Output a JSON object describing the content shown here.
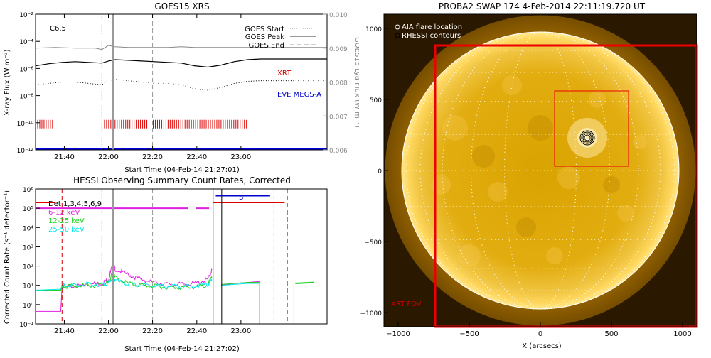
{
  "chart_data": [
    {
      "id": "goes",
      "type": "line",
      "title": "GOES15 XRS",
      "xlabel": "Start Time (04-Feb-14 21:27:01)",
      "ylabel": "X-ray Flux (W m⁻²)",
      "y2label": "GOES15 Lya Flux (W m⁻²)",
      "xlim": [
        0,
        2.2
      ],
      "ylim_log": [
        -12,
        -2
      ],
      "y2lim": [
        0.006,
        0.01
      ],
      "x_ticks": [
        {
          "v": 0.217,
          "label": "21:40"
        },
        {
          "v": 0.55,
          "label": "22:00"
        },
        {
          "v": 0.883,
          "label": "22:20"
        },
        {
          "v": 1.217,
          "label": "22:40"
        },
        {
          "v": 1.55,
          "label": "23:00"
        }
      ],
      "y_ticks": [
        {
          "v": -2,
          "label": "10⁻²"
        },
        {
          "v": -4,
          "label": "10⁻⁴"
        },
        {
          "v": -6,
          "label": "10⁻⁶"
        },
        {
          "v": -8,
          "label": "10⁻⁸"
        },
        {
          "v": -10,
          "label": "10⁻¹⁰"
        },
        {
          "v": -12,
          "label": "10⁻¹²"
        }
      ],
      "y2_ticks": [
        {
          "v": 0.01,
          "label": "0.010"
        },
        {
          "v": 0.009,
          "label": "0.009"
        },
        {
          "v": 0.008,
          "label": "0.008"
        },
        {
          "v": 0.007,
          "label": "0.007"
        },
        {
          "v": 0.006,
          "label": "0.006"
        }
      ],
      "class_label": "C6.5",
      "legend": [
        {
          "label": "GOES Start",
          "style": "dotted"
        },
        {
          "label": "GOES Peak",
          "style": "solid"
        },
        {
          "label": "GOES End",
          "style": "dashed"
        }
      ],
      "labels": {
        "xrt": "XRT",
        "eve": "EVE MEGS-A"
      },
      "markers": {
        "start": 0.5,
        "peak": 0.585,
        "end": 0.883
      },
      "series": [
        {
          "role": "gray",
          "color": "#888888",
          "x": [
            0,
            0.15,
            0.3,
            0.45,
            0.5,
            0.55,
            0.6,
            0.7,
            0.8,
            0.9,
            1.0,
            1.1,
            1.2,
            1.3,
            1.4,
            1.5,
            1.6,
            1.7,
            1.8,
            1.9,
            2.0,
            2.1,
            2.2
          ],
          "values": [
            -4.5,
            -4.45,
            -4.5,
            -4.5,
            -4.6,
            -4.3,
            -4.4,
            -4.45,
            -4.45,
            -4.45,
            -4.45,
            -4.4,
            -4.45,
            -4.45,
            -4.45,
            -4.45,
            -4.45,
            -4.45,
            -4.45,
            -4.45,
            -4.45,
            -4.45,
            -4.45
          ]
        },
        {
          "role": "black",
          "color": "#000000",
          "x": [
            0,
            0.1,
            0.2,
            0.3,
            0.4,
            0.5,
            0.55,
            0.6,
            0.7,
            0.8,
            0.9,
            1.0,
            1.1,
            1.2,
            1.3,
            1.4,
            1.5,
            1.6,
            1.7,
            1.8,
            1.9,
            2.0,
            2.1,
            2.2
          ],
          "values": [
            -5.8,
            -5.65,
            -5.55,
            -5.5,
            -5.55,
            -5.6,
            -5.45,
            -5.35,
            -5.4,
            -5.45,
            -5.5,
            -5.55,
            -5.6,
            -5.8,
            -5.9,
            -5.75,
            -5.5,
            -5.35,
            -5.3,
            -5.3,
            -5.3,
            -5.3,
            -5.3,
            -5.3
          ]
        },
        {
          "role": "dotted",
          "color": "#000000",
          "x": [
            0,
            0.1,
            0.2,
            0.3,
            0.4,
            0.5,
            0.55,
            0.6,
            0.7,
            0.8,
            0.9,
            1.0,
            1.1,
            1.2,
            1.3,
            1.4,
            1.5,
            1.6,
            1.7,
            1.8,
            1.9,
            2.0,
            2.1,
            2.2
          ],
          "values": [
            -7.2,
            -7.1,
            -7.0,
            -7.0,
            -7.1,
            -7.2,
            -6.9,
            -6.8,
            -6.9,
            -7.0,
            -7.1,
            -7.1,
            -7.2,
            -7.5,
            -7.6,
            -7.4,
            -7.1,
            -6.95,
            -6.9,
            -6.9,
            -6.9,
            -6.9,
            -6.9,
            -6.9
          ]
        }
      ],
      "xrt_segments": [
        [
          0,
          0.14
        ],
        [
          0.52,
          1.6
        ]
      ],
      "xrt_level": -10.1,
      "eve_level": -11.95
    },
    {
      "id": "hessi",
      "type": "line",
      "title": "HESSI Observing Summary Count Rates, Corrected",
      "xlabel": "Start Time (04-Feb-14 21:27:02)",
      "ylabel": "Corrected Count Rate (s⁻¹ detector⁻¹)",
      "xlim": [
        0,
        2.2
      ],
      "ylim_log": [
        -1,
        6
      ],
      "x_ticks": [
        {
          "v": 0.217,
          "label": "21:40"
        },
        {
          "v": 0.55,
          "label": "22:00"
        },
        {
          "v": 0.883,
          "label": "22:20"
        },
        {
          "v": 1.217,
          "label": "22:40"
        },
        {
          "v": 1.55,
          "label": "23:00"
        }
      ],
      "y_ticks": [
        {
          "v": 6,
          "label": "10⁶"
        },
        {
          "v": 5,
          "label": "10⁵"
        },
        {
          "v": 4,
          "label": "10⁴"
        },
        {
          "v": 3,
          "label": "10³"
        },
        {
          "v": 2,
          "label": "10²"
        },
        {
          "v": 1,
          "label": "10¹"
        },
        {
          "v": 0,
          "label": "10⁰"
        },
        {
          "v": -1,
          "label": "10⁻¹"
        }
      ],
      "legend": [
        {
          "label": "Det 1,3,4,5,6,9",
          "color": "#000000"
        },
        {
          "label": "6-12 keV",
          "color": "#e020e0"
        },
        {
          "label": "12-25 keV",
          "color": "#20d020"
        },
        {
          "label": "25-50 keV",
          "color": "#00e8e8"
        }
      ],
      "s_label": "S",
      "markers": {
        "start": 0.5,
        "peak": 0.585,
        "end": 0.883,
        "dash1": 0.2,
        "red_solid": 1.34,
        "black_solid": 1.405,
        "blue_dash": 1.8,
        "red_dash": 1.9
      },
      "series": [
        {
          "name": "6-12 keV",
          "color": "#e020e0",
          "x": [
            0,
            0.19,
            0.2,
            0.3,
            0.4,
            0.5,
            0.55,
            0.58,
            0.6,
            0.7,
            0.8,
            0.9,
            1.0,
            1.1,
            1.2,
            1.3,
            1.33
          ],
          "values": [
            -0.35,
            -0.35,
            0.9,
            0.95,
            1.05,
            1.1,
            1.3,
            2.0,
            1.85,
            1.55,
            1.3,
            1.15,
            1.05,
            1.05,
            1.1,
            1.3,
            1.8
          ]
        },
        {
          "name": "12-25 keV",
          "color": "#20d020",
          "x": [
            0,
            0.19,
            0.2,
            0.3,
            0.4,
            0.5,
            0.55,
            0.58,
            0.6,
            0.7,
            0.8,
            0.9,
            1.0,
            1.1,
            1.2,
            1.3,
            1.33
          ],
          "values": [
            0.75,
            0.75,
            0.95,
            0.95,
            1.0,
            1.0,
            1.15,
            1.6,
            1.4,
            1.1,
            1.0,
            0.95,
            0.9,
            0.9,
            0.9,
            1.0,
            1.5
          ]
        },
        {
          "name": "25-50 keV",
          "color": "#00e8e8",
          "x": [
            0,
            0.19,
            0.2,
            0.3,
            0.4,
            0.5,
            0.55,
            0.58,
            0.6,
            0.7,
            0.8,
            0.9,
            1.0,
            1.1,
            1.2,
            1.3,
            1.33
          ],
          "values": [
            0.75,
            0.8,
            1.0,
            1.0,
            1.05,
            1.05,
            1.1,
            1.4,
            1.25,
            1.05,
            1.0,
            1.0,
            0.95,
            0.95,
            0.95,
            1.05,
            1.3
          ]
        }
      ],
      "right_series": {
        "x": [
          1.4,
          1.5,
          1.6,
          1.69
        ],
        "magenta": [
          1.0,
          1.1,
          1.15,
          1.2
        ],
        "green": [
          1.05,
          1.1,
          1.15,
          1.15
        ],
        "cyan": [
          1.0,
          1.05,
          1.1,
          1.1
        ]
      },
      "far_right": {
        "x": [
          1.96,
          2.1
        ],
        "values": [
          1.1,
          1.15
        ]
      },
      "magenta_top": {
        "segments": [
          [
            0,
            1.15
          ],
          [
            1.21,
            1.31
          ]
        ],
        "level": 5.0
      },
      "red_top": {
        "segments": [
          [
            0,
            0.15
          ],
          [
            1.34,
            1.88
          ]
        ],
        "level": 5.3
      },
      "blue_top": {
        "segments": [
          [
            1.36,
            1.77
          ]
        ],
        "level": 5.65
      }
    },
    {
      "id": "swap",
      "type": "image",
      "title": "PROBA2 SWAP 174   4-Feb-2014 22:11:19.720 UT",
      "xlabel": "X (arcsecs)",
      "xlim": [
        -1100,
        1100
      ],
      "ylim": [
        -1100,
        1100
      ],
      "x_ticks": [
        {
          "v": -1000,
          "label": "−1000"
        },
        {
          "v": -500,
          "label": "−500"
        },
        {
          "v": 0,
          "label": "0"
        },
        {
          "v": 500,
          "label": "500"
        },
        {
          "v": 1000,
          "label": "1000"
        }
      ],
      "y_ticks": [
        {
          "v": 1000,
          "label": "1000"
        },
        {
          "v": 500,
          "label": "500"
        },
        {
          "v": 0,
          "label": "0"
        },
        {
          "v": -500,
          "label": "−500"
        },
        {
          "v": -1000,
          "label": "−1000"
        }
      ],
      "legend": [
        {
          "label": "AIA flare location"
        },
        {
          "label": "RHESSI contours"
        }
      ],
      "fov_label": "XRT FOV",
      "xrt_fov": [
        -740,
        -1100,
        1100,
        880
      ],
      "flare_box": [
        100,
        30,
        620,
        560
      ],
      "flare_center": [
        330,
        230
      ],
      "solar_radius": 975
    }
  ]
}
